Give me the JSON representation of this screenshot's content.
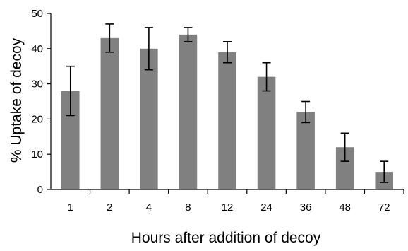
{
  "chart_data": {
    "type": "bar",
    "title": "",
    "xlabel": "Hours after addition of decoy",
    "ylabel": "% Uptake of decoy",
    "categories": [
      "1",
      "2",
      "4",
      "8",
      "12",
      "24",
      "36",
      "48",
      "72"
    ],
    "values": [
      28,
      43,
      40,
      44,
      39,
      32,
      22,
      12,
      5
    ],
    "error_low": [
      21,
      39,
      34,
      42,
      36,
      28,
      19,
      8,
      2
    ],
    "error_high": [
      35,
      47,
      46,
      46,
      42,
      36,
      25,
      16,
      8
    ],
    "ylim": [
      0,
      50
    ],
    "yticks": [
      0,
      10,
      20,
      30,
      40,
      50
    ],
    "grid": false,
    "legend": "none",
    "bar_color": "#808080",
    "error_color": "#000000"
  }
}
